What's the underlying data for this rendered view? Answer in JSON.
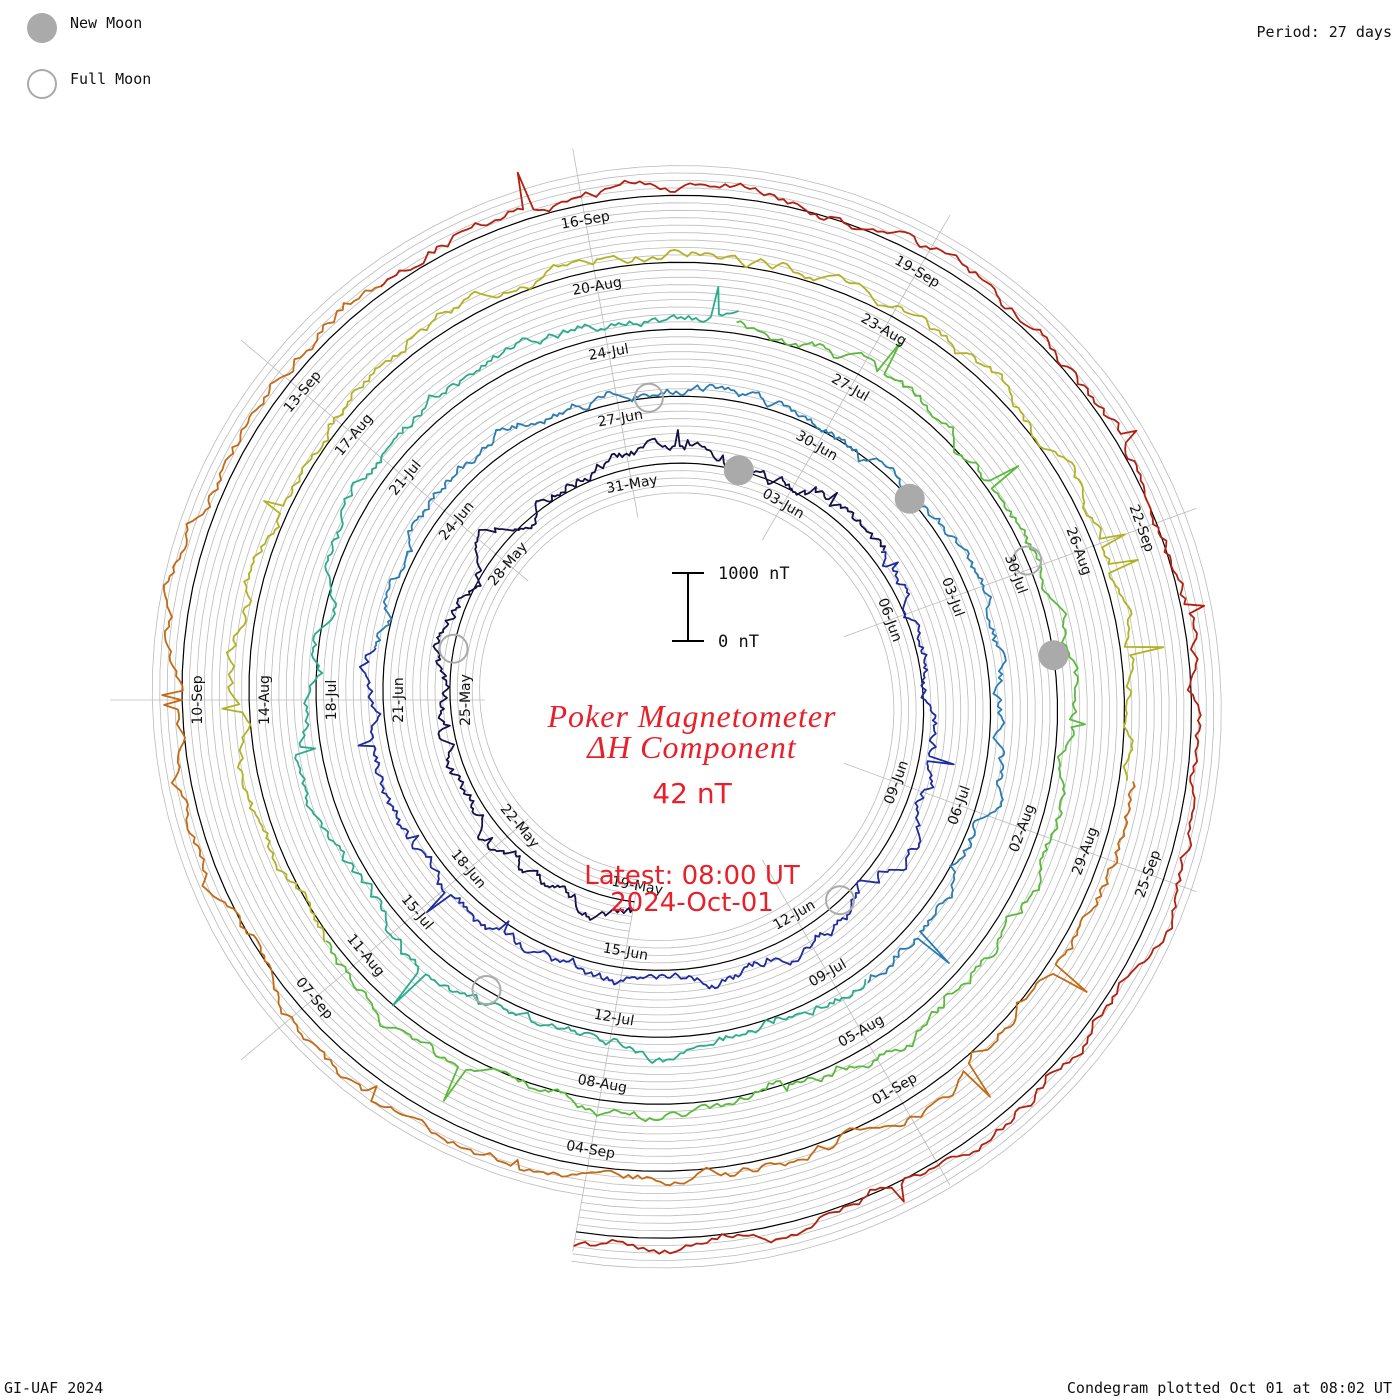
{
  "header": {
    "period": "Period: 27 days"
  },
  "legend": {
    "new_moon": "New Moon",
    "full_moon": "Full Moon"
  },
  "footer": {
    "credit": "GI-UAF 2024",
    "plotted": "Condegram plotted Oct 01 at 08:02 UT"
  },
  "colors": {
    "title": "#e8202a",
    "grid": "#bbbbbb",
    "moon_fill": "#aaaaaa",
    "baseline": "#000000"
  },
  "chart_data": {
    "type": "line",
    "title_line1": "Poker Magnetometer",
    "title_line2": "ΔH Component",
    "current_value": "42 nT",
    "latest_time": "Latest: 08:00 UT",
    "latest_date": "2024-Oct-01",
    "scale_bar": {
      "top_label": "1000 nT",
      "bottom_label": "0 nT",
      "range_nT": [
        0,
        1000
      ]
    },
    "period_days": 27,
    "series": [
      {
        "color": "#14104a"
      },
      {
        "color": "#1f2c9e"
      },
      {
        "color": "#2a7cb4"
      },
      {
        "color": "#2aac8a"
      },
      {
        "color": "#5aba3c"
      },
      {
        "color": "#b2b222"
      },
      {
        "color": "#c46a14"
      },
      {
        "color": "#b4200f"
      }
    ],
    "date_labels": [
      {
        "text": "19-May"
      },
      {
        "text": "22-May"
      },
      {
        "text": "25-May"
      },
      {
        "text": "28-May"
      },
      {
        "text": "31-May"
      },
      {
        "text": "03-Jun"
      },
      {
        "text": "06-Jun"
      },
      {
        "text": "09-Jun"
      },
      {
        "text": "12-Jun"
      },
      {
        "text": "15-Jun"
      },
      {
        "text": "18-Jun"
      },
      {
        "text": "21-Jun"
      },
      {
        "text": "24-Jun"
      },
      {
        "text": "27-Jun"
      },
      {
        "text": "30-Jun"
      },
      {
        "text": "03-Jul"
      },
      {
        "text": "06-Jul"
      },
      {
        "text": "09-Jul"
      },
      {
        "text": "12-Jul"
      },
      {
        "text": "15-Jul"
      },
      {
        "text": "18-Jul"
      },
      {
        "text": "21-Jul"
      },
      {
        "text": "24-Jul"
      },
      {
        "text": "27-Jul"
      },
      {
        "text": "30-Jul"
      },
      {
        "text": "02-Aug"
      },
      {
        "text": "05-Aug"
      },
      {
        "text": "08-Aug"
      },
      {
        "text": "11-Aug"
      },
      {
        "text": "14-Aug"
      },
      {
        "text": "17-Aug"
      },
      {
        "text": "20-Aug"
      },
      {
        "text": "23-Aug"
      },
      {
        "text": "26-Aug"
      },
      {
        "text": "29-Aug"
      },
      {
        "text": "01-Sep"
      },
      {
        "text": "04-Sep"
      },
      {
        "text": "07-Sep"
      },
      {
        "text": "10-Sep"
      },
      {
        "text": "13-Sep"
      },
      {
        "text": "16-Sep"
      },
      {
        "text": "19-Sep"
      },
      {
        "text": "22-Sep"
      },
      {
        "text": "25-Sep"
      }
    ],
    "moons": [
      {
        "phase": "new"
      },
      {
        "phase": "new"
      },
      {
        "phase": "new"
      },
      {
        "phase": "full"
      },
      {
        "phase": "full"
      },
      {
        "phase": "full"
      },
      {
        "phase": "full"
      },
      {
        "phase": "full"
      }
    ]
  }
}
